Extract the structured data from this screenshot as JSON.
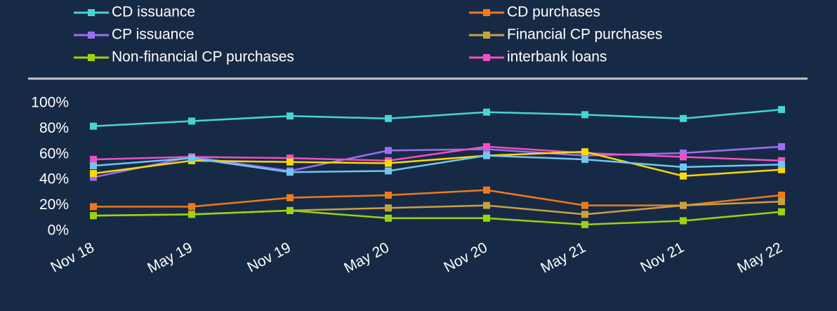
{
  "chart_data": {
    "type": "line",
    "categories": [
      "Nov 18",
      "May 19",
      "Nov 19",
      "May 20",
      "Nov 20",
      "May 21",
      "Nov 21",
      "May 22"
    ],
    "series": [
      {
        "name": "CD issuance",
        "color": "#47d4d4",
        "values": [
          82,
          86,
          90,
          88,
          93,
          91,
          88,
          95
        ]
      },
      {
        "name": "CD purchases",
        "color": "#f07a1a",
        "values": [
          19,
          19,
          26,
          28,
          32,
          20,
          20,
          28
        ]
      },
      {
        "name": "CP issuance",
        "color": "#9a6ff0",
        "values": [
          42,
          58,
          47,
          63,
          64,
          59,
          61,
          66
        ]
      },
      {
        "name": "Financial CP purchases",
        "color": "#c9a240",
        "values": [
          12,
          13,
          16,
          18,
          20,
          13,
          20,
          23
        ]
      },
      {
        "name": "Non-financial CP purchases",
        "color": "#9bd30f",
        "values": [
          12,
          13,
          16,
          10,
          10,
          5,
          8,
          15
        ]
      },
      {
        "name": "interbank loans",
        "color": "#f050c4",
        "values": [
          56,
          58,
          57,
          55,
          66,
          61,
          58,
          55
        ]
      },
      {
        "color": "#ffd800",
        "values": [
          45,
          55,
          54,
          53,
          59,
          62,
          43,
          48
        ]
      },
      {
        "color": "#6fc6f0",
        "values": [
          51,
          57,
          46,
          47,
          59,
          56,
          50,
          52
        ]
      }
    ],
    "ylim": [
      0,
      100
    ],
    "yticks": [
      {
        "value": 0,
        "label": "0%"
      },
      {
        "value": 20,
        "label": "20%"
      },
      {
        "value": 40,
        "label": "40%"
      },
      {
        "value": 60,
        "label": "60%"
      },
      {
        "value": 80,
        "label": "80%"
      },
      {
        "value": 100,
        "label": "100%"
      }
    ],
    "grid": false,
    "legend": "top"
  }
}
